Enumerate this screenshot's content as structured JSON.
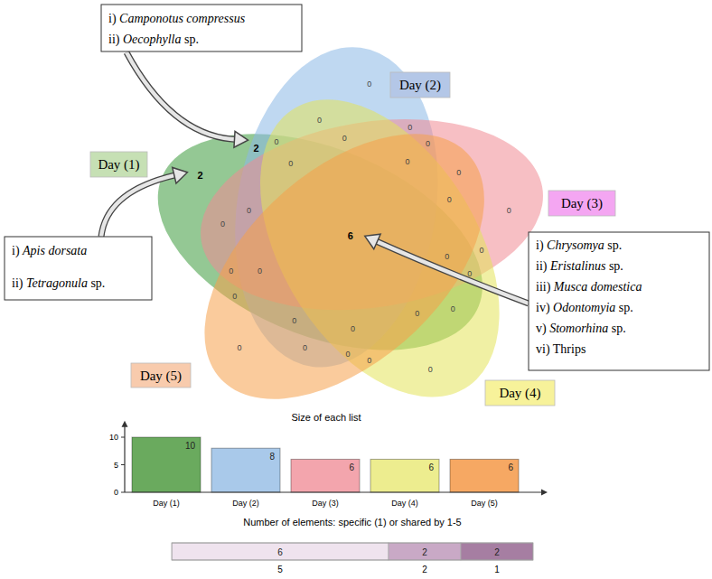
{
  "chart_data": [
    {
      "type": "venn",
      "sets": [
        {
          "name": "Day (1)",
          "color": "#3c9a3c"
        },
        {
          "name": "Day (2)",
          "color": "#8ab8e6"
        },
        {
          "name": "Day (3)",
          "color": "#f08a94"
        },
        {
          "name": "Day (4)",
          "color": "#e3e35a"
        },
        {
          "name": "Day (5)",
          "color": "#f5a04a"
        }
      ],
      "regions": [
        {
          "sets": [
            "Day (1)"
          ],
          "value": 2,
          "members": [
            "i) Apis dorsata",
            "ii) Tetragonula sp."
          ]
        },
        {
          "sets": [
            "Day (2)"
          ],
          "value": 0
        },
        {
          "sets": [
            "Day (1)",
            "Day (2)"
          ],
          "value": 2,
          "members": [
            "i) Camponotus compressus",
            "ii) Oecophylla sp."
          ]
        },
        {
          "sets": [
            "Day (3)"
          ],
          "value": 0
        },
        {
          "sets": [
            "Day (1)",
            "Day (3)"
          ],
          "value": 0
        },
        {
          "sets": [
            "Day (2)",
            "Day (3)"
          ],
          "value": 0
        },
        {
          "sets": [
            "Day (1)",
            "Day (2)",
            "Day (3)"
          ],
          "value": 0
        },
        {
          "sets": [
            "Day (4)"
          ],
          "value": 0
        },
        {
          "sets": [
            "Day (1)",
            "Day (4)"
          ],
          "value": 0
        },
        {
          "sets": [
            "Day (2)",
            "Day (4)"
          ],
          "value": 0
        },
        {
          "sets": [
            "Day (1)",
            "Day (2)",
            "Day (4)"
          ],
          "value": 0
        },
        {
          "sets": [
            "Day (3)",
            "Day (4)"
          ],
          "value": 0
        },
        {
          "sets": [
            "Day (1)",
            "Day (3)",
            "Day (4)"
          ],
          "value": 0
        },
        {
          "sets": [
            "Day (2)",
            "Day (3)",
            "Day (4)"
          ],
          "value": 0
        },
        {
          "sets": [
            "Day (1)",
            "Day (2)",
            "Day (3)",
            "Day (4)"
          ],
          "value": 0
        },
        {
          "sets": [
            "Day (5)"
          ],
          "value": 0
        },
        {
          "sets": [
            "Day (1)",
            "Day (5)"
          ],
          "value": 0
        },
        {
          "sets": [
            "Day (2)",
            "Day (5)"
          ],
          "value": 0
        },
        {
          "sets": [
            "Day (1)",
            "Day (2)",
            "Day (5)"
          ],
          "value": 0
        },
        {
          "sets": [
            "Day (3)",
            "Day (5)"
          ],
          "value": 0
        },
        {
          "sets": [
            "Day (1)",
            "Day (3)",
            "Day (5)"
          ],
          "value": 0
        },
        {
          "sets": [
            "Day (2)",
            "Day (3)",
            "Day (5)"
          ],
          "value": 0
        },
        {
          "sets": [
            "Day (1)",
            "Day (2)",
            "Day (3)",
            "Day (5)"
          ],
          "value": 0
        },
        {
          "sets": [
            "Day (4)",
            "Day (5)"
          ],
          "value": 0
        },
        {
          "sets": [
            "Day (1)",
            "Day (4)",
            "Day (5)"
          ],
          "value": 0
        },
        {
          "sets": [
            "Day (2)",
            "Day (4)",
            "Day (5)"
          ],
          "value": 0
        },
        {
          "sets": [
            "Day (1)",
            "Day (2)",
            "Day (4)",
            "Day (5)"
          ],
          "value": 0
        },
        {
          "sets": [
            "Day (3)",
            "Day (4)",
            "Day (5)"
          ],
          "value": 0
        },
        {
          "sets": [
            "Day (1)",
            "Day (3)",
            "Day (4)",
            "Day (5)"
          ],
          "value": 0
        },
        {
          "sets": [
            "Day (2)",
            "Day (3)",
            "Day (4)",
            "Day (5)"
          ],
          "value": 0
        },
        {
          "sets": [
            "Day (1)",
            "Day (2)",
            "Day (3)",
            "Day (4)",
            "Day (5)"
          ],
          "value": 6,
          "members": [
            "i) Chrysomya sp.",
            "ii) Eristalinus sp.",
            "iii) Musca domestica",
            "iv) Odontomyia sp.",
            "v) Stomorhina sp.",
            "vi) Thrips"
          ]
        }
      ]
    },
    {
      "type": "bar",
      "title": "Size of each list",
      "categories": [
        "Day (1)",
        "Day (2)",
        "Day (3)",
        "Day (4)",
        "Day (5)"
      ],
      "values": [
        10,
        8,
        6,
        6,
        6
      ],
      "colors": [
        "#6aaa5e",
        "#a9c9ea",
        "#f3a5ad",
        "#eded8f",
        "#f6a863"
      ],
      "ylim": [
        0,
        12
      ],
      "yticks": [
        0,
        5,
        10
      ],
      "data_labels": true
    },
    {
      "type": "bar",
      "orientation": "horizontal",
      "stacked": true,
      "title": "Number of elements: specific (1) or shared by 1-5",
      "categories": [
        null
      ],
      "series": [
        {
          "name": "5",
          "color": "#efe3ee",
          "values": [
            6
          ]
        },
        {
          "name": "2",
          "color": "#c9a9c6",
          "values": [
            2
          ]
        },
        {
          "name": "1",
          "color": "#a67ea2",
          "values": [
            2
          ]
        }
      ],
      "xlim": [
        0,
        10
      ],
      "tick_labels": false,
      "data_labels": true
    }
  ]
}
